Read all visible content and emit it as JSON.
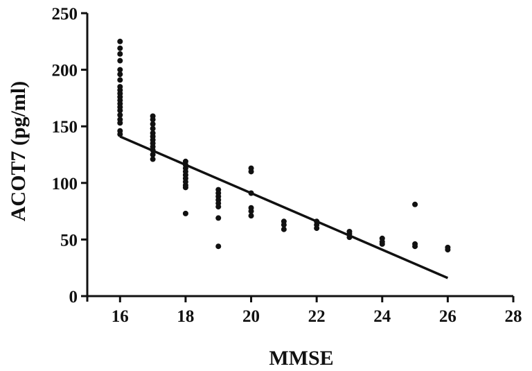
{
  "chart_data": {
    "type": "scatter",
    "title": "",
    "xlabel": "MMSE",
    "ylabel": "ACOT7 (pg/ml)",
    "xlim": [
      15,
      28
    ],
    "ylim": [
      0,
      250
    ],
    "x_ticks": [
      16,
      18,
      20,
      22,
      24,
      26,
      28
    ],
    "y_ticks": [
      0,
      50,
      100,
      150,
      200,
      250
    ],
    "x_tick_labels": [
      "16",
      "18",
      "20",
      "22",
      "24",
      "26",
      "28"
    ],
    "y_tick_labels": [
      "0",
      "50",
      "100",
      "150",
      "200",
      "250"
    ],
    "grid": false,
    "legend": "none",
    "colors": {
      "points": "#111111",
      "line": "#111111",
      "axis": "#111111"
    },
    "points": [
      {
        "x": 16,
        "y": 225
      },
      {
        "x": 16,
        "y": 219
      },
      {
        "x": 16,
        "y": 214
      },
      {
        "x": 16,
        "y": 208
      },
      {
        "x": 16,
        "y": 200
      },
      {
        "x": 16,
        "y": 196
      },
      {
        "x": 16,
        "y": 191
      },
      {
        "x": 16,
        "y": 185
      },
      {
        "x": 16,
        "y": 182
      },
      {
        "x": 16,
        "y": 179
      },
      {
        "x": 16,
        "y": 176
      },
      {
        "x": 16,
        "y": 173
      },
      {
        "x": 16,
        "y": 170
      },
      {
        "x": 16,
        "y": 167
      },
      {
        "x": 16,
        "y": 164
      },
      {
        "x": 16,
        "y": 160
      },
      {
        "x": 16,
        "y": 156
      },
      {
        "x": 16,
        "y": 153
      },
      {
        "x": 16,
        "y": 146
      },
      {
        "x": 16,
        "y": 143
      },
      {
        "x": 17,
        "y": 159
      },
      {
        "x": 17,
        "y": 156
      },
      {
        "x": 17,
        "y": 152
      },
      {
        "x": 17,
        "y": 148
      },
      {
        "x": 17,
        "y": 144
      },
      {
        "x": 17,
        "y": 141
      },
      {
        "x": 17,
        "y": 138
      },
      {
        "x": 17,
        "y": 135
      },
      {
        "x": 17,
        "y": 132
      },
      {
        "x": 17,
        "y": 129
      },
      {
        "x": 17,
        "y": 125
      },
      {
        "x": 17,
        "y": 121
      },
      {
        "x": 18,
        "y": 119
      },
      {
        "x": 18,
        "y": 116
      },
      {
        "x": 18,
        "y": 113
      },
      {
        "x": 18,
        "y": 110
      },
      {
        "x": 18,
        "y": 107
      },
      {
        "x": 18,
        "y": 104
      },
      {
        "x": 18,
        "y": 101
      },
      {
        "x": 18,
        "y": 98
      },
      {
        "x": 18,
        "y": 96
      },
      {
        "x": 18,
        "y": 73
      },
      {
        "x": 19,
        "y": 94
      },
      {
        "x": 19,
        "y": 91
      },
      {
        "x": 19,
        "y": 88
      },
      {
        "x": 19,
        "y": 85
      },
      {
        "x": 19,
        "y": 82
      },
      {
        "x": 19,
        "y": 79
      },
      {
        "x": 19,
        "y": 69
      },
      {
        "x": 19,
        "y": 44
      },
      {
        "x": 20,
        "y": 113
      },
      {
        "x": 20,
        "y": 110
      },
      {
        "x": 20,
        "y": 91
      },
      {
        "x": 20,
        "y": 78
      },
      {
        "x": 20,
        "y": 75
      },
      {
        "x": 20,
        "y": 71
      },
      {
        "x": 21,
        "y": 66
      },
      {
        "x": 21,
        "y": 63
      },
      {
        "x": 21,
        "y": 59
      },
      {
        "x": 22,
        "y": 66
      },
      {
        "x": 22,
        "y": 63
      },
      {
        "x": 22,
        "y": 60
      },
      {
        "x": 23,
        "y": 57
      },
      {
        "x": 23,
        "y": 55
      },
      {
        "x": 23,
        "y": 52
      },
      {
        "x": 24,
        "y": 51
      },
      {
        "x": 24,
        "y": 48
      },
      {
        "x": 24,
        "y": 46
      },
      {
        "x": 25,
        "y": 81
      },
      {
        "x": 25,
        "y": 46
      },
      {
        "x": 25,
        "y": 44
      },
      {
        "x": 26,
        "y": 43
      },
      {
        "x": 26,
        "y": 41
      }
    ],
    "trendline": {
      "x": [
        16,
        26
      ],
      "y": [
        141,
        16
      ]
    }
  }
}
